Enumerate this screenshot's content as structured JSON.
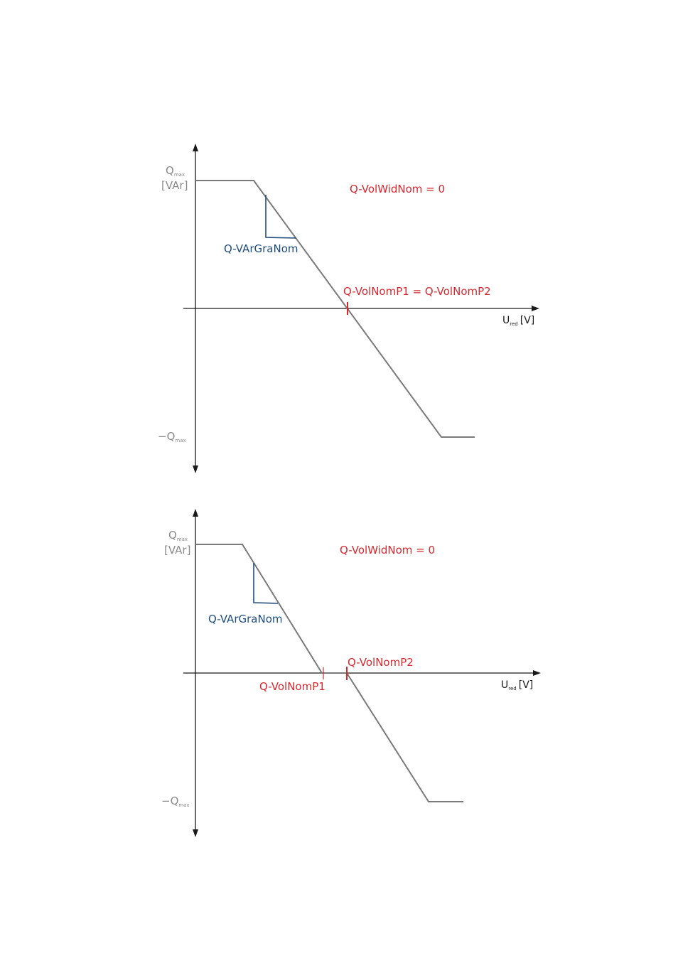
{
  "colors": {
    "curve": "#7a7a7a",
    "parameter_red": "#d7282f",
    "gradient_blue": "#1f4e7e",
    "axis": "#1a1a1a",
    "axis_label_gray": "#8a8a8a"
  },
  "diagrams": [
    {
      "id": "top",
      "y_axis": {
        "q_label": "Q",
        "q_sub": "max",
        "unit": "[VAr]",
        "neg_label": "−Q",
        "neg_sub": "max"
      },
      "x_axis": {
        "u_label": "U",
        "u_sub": "red",
        "unit": "[V]"
      },
      "annotations": {
        "width": "Q-VolWidNom = 0",
        "gradient": "Q-VArGraNom",
        "nominal": "Q-VolNomP1 = Q-VolNomP2"
      }
    },
    {
      "id": "bottom",
      "y_axis": {
        "q_label": "Q",
        "q_sub": "max",
        "unit": "[VAr]",
        "neg_label": "−Q",
        "neg_sub": "max"
      },
      "x_axis": {
        "u_label": "U",
        "u_sub": "red",
        "unit": "[V]"
      },
      "annotations": {
        "width": "Q-VolWidNom = 0",
        "gradient": "Q-VArGraNom",
        "p1": "Q-VolNomP1",
        "p2": "Q-VolNomP2"
      }
    }
  ]
}
